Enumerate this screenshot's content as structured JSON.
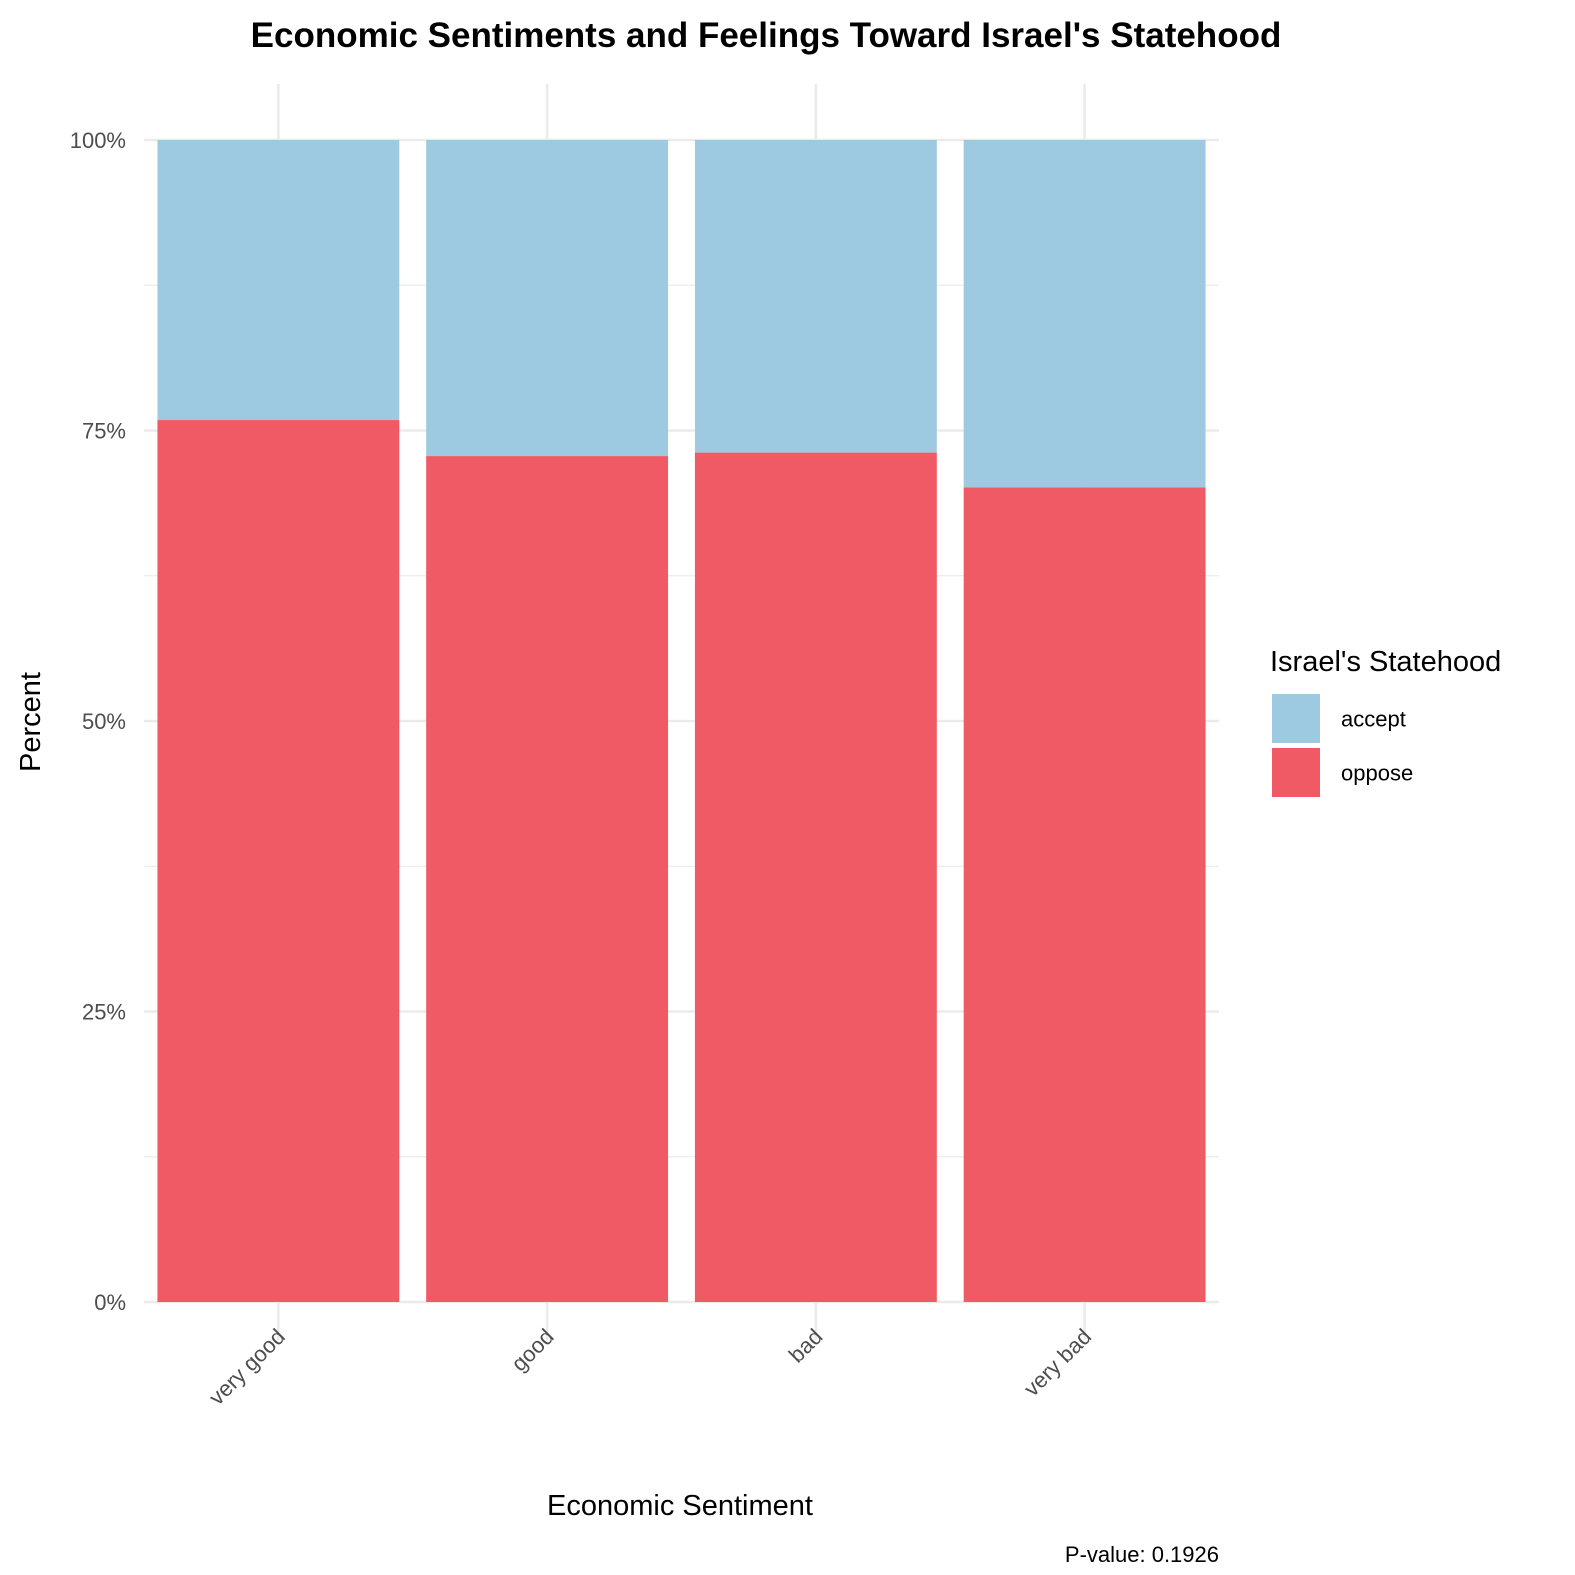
{
  "chart_data": {
    "type": "bar",
    "stacked": true,
    "normalized": true,
    "title": "Economic Sentiments and Feelings Toward Israel's Statehood",
    "xlabel": "Economic Sentiment",
    "ylabel": "Percent",
    "categories": [
      "very good",
      "good",
      "bad",
      "very bad"
    ],
    "series": [
      {
        "name": "accept",
        "color": "#9ECAE1",
        "values": [
          24.1,
          27.2,
          26.9,
          29.9
        ]
      },
      {
        "name": "oppose",
        "color": "#EF5A64",
        "values": [
          75.9,
          72.8,
          73.1,
          70.1
        ]
      }
    ],
    "ylim": [
      0,
      100
    ],
    "yticks": [
      0,
      25,
      50,
      75,
      100
    ],
    "ytick_labels": [
      "0%",
      "25%",
      "50%",
      "75%",
      "100%"
    ],
    "grid": true,
    "legend": {
      "title": "Israel's Statehood",
      "placement": "right",
      "entries": [
        "accept",
        "oppose"
      ]
    },
    "caption": "P-value: 0.1926"
  }
}
